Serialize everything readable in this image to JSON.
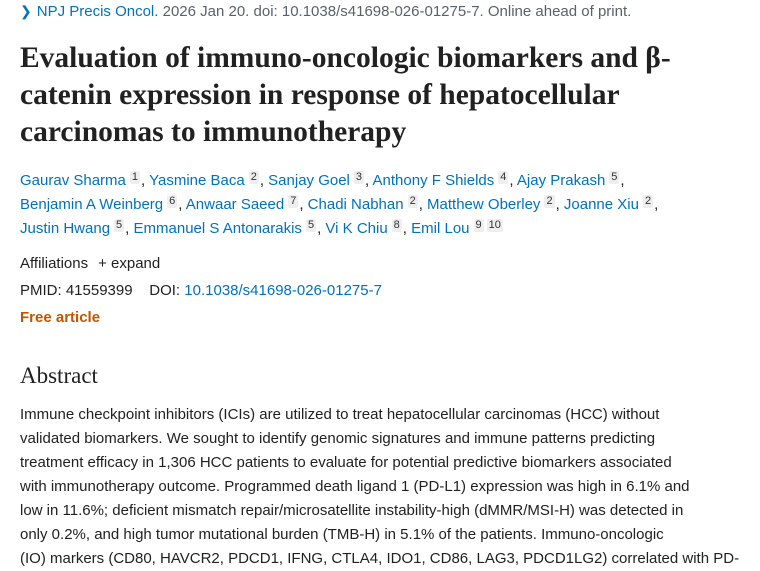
{
  "citation": {
    "journal": "NPJ Precis Oncol.",
    "rest": " 2026 Jan 20. doi: 10.1038/s41698-026-01275-7. Online ahead of print."
  },
  "title_lines": [
    "Evaluation of immuno-oncologic biomarkers and β-",
    "catenin expression in response of hepatocellular",
    "carcinomas to immunotherapy"
  ],
  "authors": [
    [
      {
        "name": "Gaurav Sharma",
        "aff": [
          "1"
        ]
      },
      {
        "name": "Yasmine Baca",
        "aff": [
          "2"
        ]
      },
      {
        "name": "Sanjay Goel",
        "aff": [
          "3"
        ]
      },
      {
        "name": "Anthony F Shields",
        "aff": [
          "4"
        ]
      },
      {
        "name": "Ajay Prakash",
        "aff": [
          "5"
        ]
      }
    ],
    [
      {
        "name": "Benjamin A Weinberg",
        "aff": [
          "6"
        ]
      },
      {
        "name": "Anwaar Saeed",
        "aff": [
          "7"
        ]
      },
      {
        "name": "Chadi Nabhan",
        "aff": [
          "2"
        ]
      },
      {
        "name": "Matthew Oberley",
        "aff": [
          "2"
        ]
      },
      {
        "name": "Joanne Xiu",
        "aff": [
          "2"
        ]
      }
    ],
    [
      {
        "name": "Justin Hwang",
        "aff": [
          "5"
        ]
      },
      {
        "name": "Emmanuel S Antonarakis",
        "aff": [
          "5"
        ]
      },
      {
        "name": "Vi K Chiu",
        "aff": [
          "8"
        ]
      },
      {
        "name": "Emil Lou",
        "aff": [
          "9",
          "10"
        ]
      }
    ]
  ],
  "affiliations": {
    "label": "Affiliations",
    "expand": "expand"
  },
  "ids": {
    "pmid_label": "PMID:",
    "pmid": "41559399",
    "doi_label": "DOI:",
    "doi": "10.1038/s41698-026-01275-7"
  },
  "free_article": "Free article",
  "abstract": {
    "heading": "Abstract",
    "lines": [
      "Immune checkpoint inhibitors (ICIs) are utilized to treat hepatocellular carcinomas (HCC) without",
      "validated biomarkers. We sought to identify genomic signatures and immune patterns predicting",
      "treatment efficacy in 1,306 HCC patients to evaluate for potential predictive biomarkers associated",
      "with immunotherapy outcome. Programmed death ligand 1 (PD-L1) expression was high in 6.1% and",
      "low in 11.6%; deficient mismatch repair/microsatellite instability-high (dMMR/MSI-H) was detected in",
      "only 0.2%, and high tumor mutational burden (TMB-H) in 5.1% of the patients. Immuno-oncologic",
      "(IO) markers (CD80, HAVCR2, PDCD1, IFNG, CTLA4, IDO1, CD86, LAG3, PDCD1LG2) correlated with PD-"
    ]
  },
  "colors": {
    "link": "#0071bc",
    "free": "#c05600",
    "text": "#212121"
  }
}
